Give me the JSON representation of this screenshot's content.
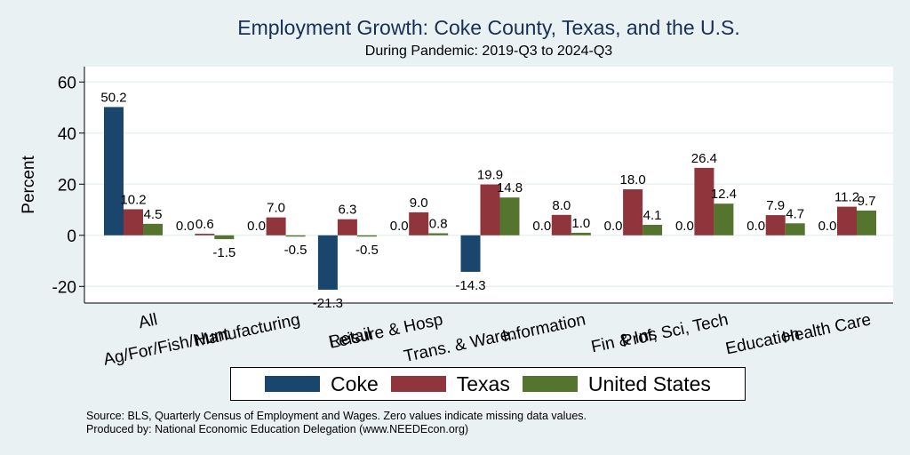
{
  "chart_data": {
    "type": "bar",
    "title": "Employment Growth: Coke County, Texas, and the U.S.",
    "subtitle": "During Pandemic: 2019-Q3 to 2024-Q3",
    "xlabel": "",
    "ylabel": "Percent",
    "ylim": [
      -26.5,
      66
    ],
    "yticks": [
      -20,
      0,
      20,
      40,
      60
    ],
    "ytick_labels": [
      "-20",
      "0",
      "20",
      "40",
      "60"
    ],
    "grid": true,
    "legend_position": "bottom",
    "categories": [
      "All",
      "Ag/For/Fish/Hunt",
      "Manufacturing",
      "Retail",
      "Leisure & Hosp",
      "Trans. & Ware.",
      "Information",
      "Fin & Ins",
      "Prof, Sci, Tech",
      "Education",
      "Health Care"
    ],
    "series": [
      {
        "name": "Coke",
        "color": "#1a466e",
        "values": [
          50.2,
          0.0,
          0.0,
          -21.3,
          0.0,
          -14.3,
          0.0,
          0.0,
          0.0,
          0.0,
          0.0
        ],
        "labels": [
          "50.2",
          "0.0",
          "0.0",
          "-21.3",
          "0.0",
          "-14.3",
          "0.0",
          "0.0",
          "0.0",
          "0.0",
          "0.0"
        ]
      },
      {
        "name": "Texas",
        "color": "#90353b",
        "values": [
          10.2,
          0.6,
          7.0,
          6.3,
          9.0,
          19.9,
          8.0,
          18.0,
          26.4,
          7.9,
          11.2
        ],
        "labels": [
          "10.2",
          "0.6",
          "7.0",
          "6.3",
          "9.0",
          "19.9",
          "8.0",
          "18.0",
          "26.4",
          "7.9",
          "11.2"
        ]
      },
      {
        "name": "United States",
        "color": "#55752f",
        "values": [
          4.5,
          -1.5,
          -0.5,
          -0.5,
          0.8,
          14.8,
          1.0,
          4.1,
          12.4,
          4.7,
          9.7
        ],
        "labels": [
          "4.5",
          "-1.5",
          "-0.5",
          "-0.5",
          "0.8",
          "14.8",
          "1.0",
          "4.1",
          "12.4",
          "4.7",
          "9.7"
        ]
      }
    ]
  },
  "notes": {
    "source": "Source: BLS, Quarterly Census of Employment and Wages. Zero values indicate missing data values.",
    "produced": "Produced by: National Economic Education Delegation (www.NEEDEcon.org)"
  }
}
